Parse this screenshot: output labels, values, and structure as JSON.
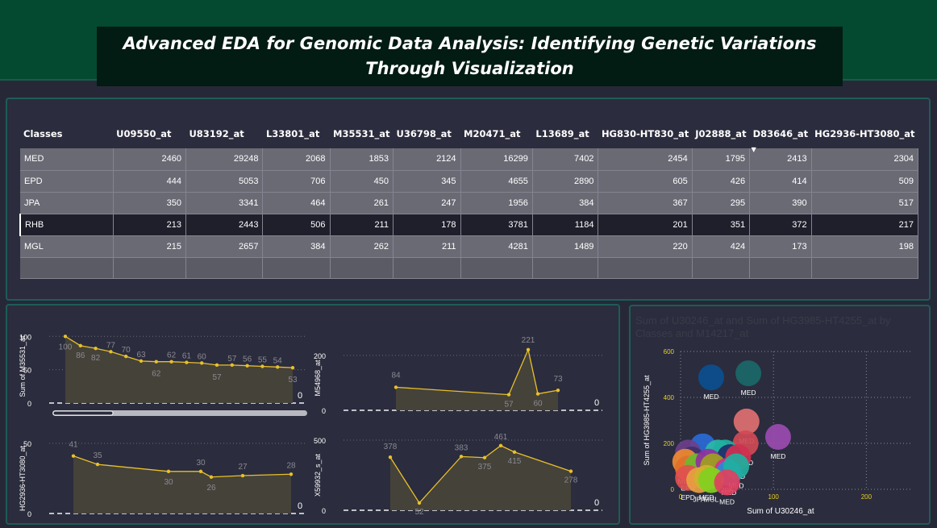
{
  "title": "Advanced EDA for Genomic Data Analysis: Identifying Genetic Variations Through Visualization",
  "table": {
    "headers": [
      "Classes",
      "U09550_at",
      "U83192_at",
      "L33801_at",
      "M35531_at",
      "U36798_at",
      "M20471_at",
      "L13689_at",
      "HG830-HT830_at",
      "J02888_at",
      "D83646_at",
      "HG2936-HT3080_at"
    ],
    "rows": [
      [
        "MED",
        "2460",
        "29248",
        "2068",
        "1853",
        "2124",
        "16299",
        "7402",
        "2454",
        "1795",
        "2413",
        "2304"
      ],
      [
        "EPD",
        "444",
        "5053",
        "706",
        "450",
        "345",
        "4655",
        "2890",
        "605",
        "426",
        "414",
        "509"
      ],
      [
        "JPA",
        "350",
        "3341",
        "464",
        "261",
        "247",
        "1956",
        "384",
        "367",
        "295",
        "390",
        "517"
      ],
      [
        "RHB",
        "213",
        "2443",
        "506",
        "211",
        "178",
        "3781",
        "1184",
        "201",
        "351",
        "372",
        "217"
      ],
      [
        "MGL",
        "215",
        "2657",
        "384",
        "262",
        "211",
        "4281",
        "1489",
        "220",
        "424",
        "173",
        "198"
      ]
    ]
  },
  "charts": {
    "c1": {
      "ylabel": "Sum of M35531_at",
      "values": [
        100,
        86,
        82,
        77,
        70,
        63,
        62,
        62,
        61,
        60,
        57,
        57,
        56,
        55,
        54,
        53
      ],
      "ticks": [
        "100",
        "50",
        "0"
      ],
      "end_label": "0"
    },
    "c2": {
      "ylabel": "M54968_at",
      "values": [
        84,
        57,
        221,
        60,
        73
      ],
      "ticks": [
        "200",
        "0"
      ],
      "end_label": "0"
    },
    "c3": {
      "ylabel": "HG2936-HT3080_at",
      "values": [
        41,
        35,
        30,
        30,
        26,
        27,
        28
      ],
      "ticks": [
        "50",
        "0"
      ],
      "end_label": "0"
    },
    "c4": {
      "ylabel": "X59932_s_at",
      "values": [
        378,
        52,
        383,
        375,
        461,
        415,
        278
      ],
      "ticks": [
        "500",
        "0"
      ],
      "end_label": "0"
    }
  },
  "scatter": {
    "title": "Sum of U30246_at and Sum of HG3985-HT4255_at by Classes and M14217_at",
    "xlabel": "Sum of U30246_at",
    "ylabel": "Sum of HG3985-HT4255_at",
    "xticks": [
      "0",
      "100",
      "200"
    ],
    "yticks": [
      "600",
      "400",
      "200",
      "0"
    ]
  },
  "chart_data": [
    {
      "type": "line",
      "ylabel": "Sum of M35531_at",
      "x": [
        1,
        2,
        3,
        4,
        5,
        6,
        7,
        8,
        9,
        10,
        11,
        12,
        13,
        14,
        15,
        16
      ],
      "values": [
        100,
        86,
        82,
        77,
        70,
        63,
        62,
        62,
        61,
        60,
        57,
        57,
        56,
        55,
        54,
        53
      ],
      "ylim": [
        0,
        110
      ]
    },
    {
      "type": "line",
      "ylabel": "M54968_at",
      "values": [
        84,
        57,
        221,
        60,
        73
      ],
      "ylim": [
        0,
        230
      ]
    },
    {
      "type": "line",
      "ylabel": "HG2936-HT3080_at",
      "values": [
        41,
        35,
        30,
        30,
        26,
        27,
        28
      ],
      "ylim": [
        0,
        50
      ]
    },
    {
      "type": "line",
      "ylabel": "X59932_s_at",
      "values": [
        378,
        52,
        383,
        375,
        461,
        415,
        278
      ],
      "ylim": [
        0,
        500
      ]
    },
    {
      "type": "scatter",
      "xlabel": "Sum of U30246_at",
      "ylabel": "Sum of HG3985-HT4255_at",
      "xlim": [
        0,
        250
      ],
      "ylim": [
        0,
        600
      ],
      "points": [
        {
          "x": 33,
          "y": 487,
          "class": "MED",
          "color": "#0b4f8f"
        },
        {
          "x": 73,
          "y": 505,
          "class": "MED",
          "color": "#1a6868"
        },
        {
          "x": 71,
          "y": 295,
          "class": "MED",
          "color": "#e07070"
        },
        {
          "x": 70,
          "y": 200,
          "class": "MED",
          "color": "#d04a55"
        },
        {
          "x": 105,
          "y": 228,
          "class": "MED",
          "color": "#9a4bb0"
        },
        {
          "x": 24,
          "y": 187,
          "class": "MED",
          "color": "#2a6ad6"
        },
        {
          "x": 40,
          "y": 160,
          "class": "MED",
          "color": "#2ab8a8"
        },
        {
          "x": 48,
          "y": 160,
          "class": "MED",
          "color": "#20b0a0"
        },
        {
          "x": 53,
          "y": 140,
          "class": "EPD",
          "color": "#1e2d6a"
        },
        {
          "x": 62,
          "y": 140,
          "class": "EPD",
          "color": "#d03050"
        },
        {
          "x": 8,
          "y": 160,
          "class": "JPA",
          "color": "#6b3f8a"
        },
        {
          "x": 12,
          "y": 130,
          "class": "MED",
          "color": "#40306a"
        },
        {
          "x": 5,
          "y": 120,
          "class": "MED",
          "color": "#f08a30"
        },
        {
          "x": 8,
          "y": 90,
          "class": "EPD",
          "color": "#e0702a"
        },
        {
          "x": 18,
          "y": 100,
          "class": "JPA",
          "color": "#6bb830"
        },
        {
          "x": 30,
          "y": 120,
          "class": "MED",
          "color": "#9030a0"
        },
        {
          "x": 35,
          "y": 100,
          "class": "MED",
          "color": "#a0a020"
        },
        {
          "x": 50,
          "y": 80,
          "class": "JPA",
          "color": "#d03090"
        },
        {
          "x": 52,
          "y": 70,
          "class": "MED",
          "color": "#2a8ad6"
        },
        {
          "x": 60,
          "y": 100,
          "class": "MED",
          "color": "#20b0a0"
        },
        {
          "x": 8,
          "y": 50,
          "class": "EPD",
          "color": "#e05050"
        },
        {
          "x": 20,
          "y": 40,
          "class": "JPA",
          "color": "#e8a040"
        },
        {
          "x": 28,
          "y": 50,
          "class": "MED",
          "color": "#d0b030"
        },
        {
          "x": 33,
          "y": 40,
          "class": "MGL",
          "color": "#80d020"
        },
        {
          "x": 50,
          "y": 30,
          "class": "MED",
          "color": "#e04060"
        }
      ]
    }
  ]
}
